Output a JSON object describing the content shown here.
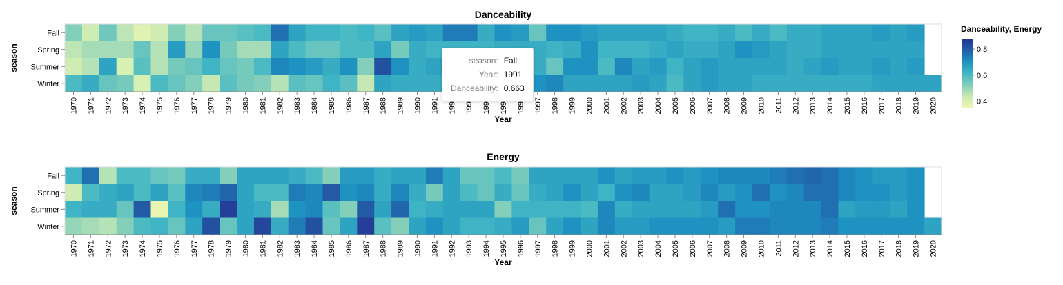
{
  "chart_data": [
    {
      "type": "heatmap",
      "title": "Danceability",
      "xlabel": "Year",
      "ylabel": "season",
      "x": [
        "1970",
        "1971",
        "1972",
        "1973",
        "1974",
        "1975",
        "1976",
        "1977",
        "1978",
        "1979",
        "1980",
        "1981",
        "1982",
        "1983",
        "1984",
        "1985",
        "1986",
        "1987",
        "1988",
        "1989",
        "1990",
        "1991",
        "1992",
        "1993",
        "1994",
        "1995",
        "1996",
        "1997",
        "1998",
        "1999",
        "2000",
        "2001",
        "2002",
        "2003",
        "2004",
        "2005",
        "2006",
        "2007",
        "2008",
        "2009",
        "2010",
        "2011",
        "2012",
        "2013",
        "2014",
        "2015",
        "2016",
        "2017",
        "2018",
        "2019",
        "2020"
      ],
      "y": [
        "Fall",
        "Spring",
        "Summer",
        "Winter"
      ],
      "values": [
        [
          0.52,
          0.42,
          0.55,
          0.45,
          0.38,
          0.42,
          0.52,
          0.46,
          0.56,
          0.56,
          0.58,
          0.6,
          0.76,
          0.66,
          0.62,
          0.62,
          0.6,
          0.62,
          0.58,
          0.66,
          0.68,
          0.663,
          0.74,
          0.74,
          0.64,
          0.7,
          0.68,
          0.56,
          0.7,
          0.7,
          0.68,
          0.66,
          0.66,
          0.66,
          0.66,
          0.64,
          0.62,
          0.62,
          0.64,
          0.6,
          0.64,
          0.6,
          0.64,
          0.64,
          0.66,
          0.66,
          0.66,
          0.68,
          0.66,
          0.68,
          null
        ],
        [
          0.45,
          0.48,
          0.48,
          0.48,
          0.56,
          0.46,
          0.68,
          0.5,
          0.7,
          0.54,
          0.48,
          0.48,
          0.66,
          0.6,
          0.56,
          0.56,
          0.6,
          0.6,
          0.66,
          0.54,
          0.64,
          0.62,
          0.62,
          0.62,
          0.62,
          0.64,
          0.64,
          0.64,
          0.62,
          0.64,
          0.7,
          0.62,
          0.62,
          0.62,
          0.64,
          0.66,
          0.64,
          0.64,
          0.66,
          0.7,
          0.68,
          0.66,
          0.64,
          0.64,
          0.66,
          0.66,
          0.66,
          0.66,
          0.66,
          0.66,
          null
        ],
        [
          0.42,
          0.46,
          0.66,
          0.4,
          0.58,
          0.46,
          0.54,
          0.56,
          0.62,
          0.56,
          0.54,
          0.6,
          0.72,
          0.7,
          0.68,
          0.64,
          0.7,
          0.52,
          0.82,
          0.7,
          0.64,
          0.66,
          0.68,
          0.68,
          0.7,
          0.7,
          0.66,
          0.64,
          0.56,
          0.7,
          0.7,
          0.6,
          0.72,
          0.66,
          0.68,
          0.62,
          0.66,
          0.68,
          0.66,
          0.66,
          0.66,
          0.66,
          0.64,
          0.66,
          0.68,
          0.66,
          0.66,
          0.68,
          0.66,
          0.68,
          null
        ],
        [
          0.6,
          0.64,
          0.56,
          0.54,
          0.4,
          0.6,
          0.56,
          0.52,
          0.44,
          0.58,
          0.54,
          0.52,
          0.46,
          0.58,
          0.56,
          0.62,
          0.58,
          0.44,
          0.66,
          0.64,
          0.64,
          0.64,
          0.64,
          0.64,
          0.64,
          0.66,
          0.7,
          0.7,
          0.72,
          0.66,
          0.66,
          0.66,
          0.66,
          0.68,
          0.66,
          0.6,
          0.66,
          0.68,
          0.66,
          0.66,
          0.64,
          0.64,
          0.64,
          0.64,
          0.64,
          0.64,
          0.64,
          0.66,
          0.66,
          0.66,
          0.66
        ]
      ]
    },
    {
      "type": "heatmap",
      "title": "Energy",
      "xlabel": "Year",
      "ylabel": "season",
      "x": [
        "1970",
        "1971",
        "1972",
        "1973",
        "1974",
        "1975",
        "1976",
        "1977",
        "1978",
        "1979",
        "1980",
        "1981",
        "1982",
        "1983",
        "1984",
        "1985",
        "1986",
        "1987",
        "1988",
        "1989",
        "1990",
        "1991",
        "1992",
        "1993",
        "1994",
        "1995",
        "1996",
        "1997",
        "1998",
        "1999",
        "2000",
        "2001",
        "2002",
        "2003",
        "2004",
        "2005",
        "2006",
        "2007",
        "2008",
        "2009",
        "2010",
        "2011",
        "2012",
        "2013",
        "2014",
        "2015",
        "2016",
        "2017",
        "2018",
        "2019",
        "2020"
      ],
      "y": [
        "Fall",
        "Spring",
        "Summer",
        "Winter"
      ],
      "values": [
        [
          0.62,
          0.76,
          0.46,
          0.6,
          0.6,
          0.56,
          0.54,
          0.64,
          0.64,
          0.52,
          0.66,
          0.66,
          0.66,
          0.64,
          0.6,
          0.52,
          0.68,
          0.68,
          0.64,
          0.66,
          0.66,
          0.74,
          0.66,
          0.56,
          0.56,
          0.6,
          0.54,
          0.66,
          0.66,
          0.66,
          0.66,
          0.7,
          0.66,
          0.68,
          0.68,
          0.7,
          0.68,
          0.7,
          0.72,
          0.72,
          0.72,
          0.74,
          0.76,
          0.78,
          0.76,
          0.72,
          0.7,
          0.68,
          0.68,
          0.7,
          null
        ],
        [
          0.42,
          0.6,
          0.64,
          0.66,
          0.6,
          0.66,
          0.58,
          0.72,
          0.74,
          0.78,
          0.66,
          0.6,
          0.6,
          0.74,
          0.72,
          0.8,
          0.7,
          0.72,
          0.64,
          0.72,
          0.64,
          0.54,
          0.66,
          0.6,
          0.56,
          0.64,
          0.56,
          0.64,
          0.66,
          0.7,
          0.66,
          0.62,
          0.7,
          0.72,
          0.66,
          0.66,
          0.68,
          0.72,
          0.68,
          0.7,
          0.76,
          0.7,
          0.72,
          0.76,
          0.76,
          0.72,
          0.7,
          0.7,
          0.68,
          0.7,
          null
        ],
        [
          0.62,
          0.64,
          0.64,
          0.56,
          0.8,
          0.36,
          0.62,
          0.7,
          0.64,
          0.86,
          0.66,
          0.64,
          0.48,
          0.7,
          0.72,
          0.58,
          0.52,
          0.8,
          0.66,
          0.78,
          0.62,
          0.64,
          0.66,
          0.66,
          0.66,
          0.52,
          0.62,
          0.62,
          0.62,
          0.62,
          0.6,
          0.72,
          0.64,
          0.66,
          0.66,
          0.66,
          0.66,
          0.68,
          0.76,
          0.7,
          0.7,
          0.72,
          0.72,
          0.72,
          0.76,
          0.66,
          0.68,
          0.68,
          0.66,
          0.7,
          null
        ],
        [
          0.5,
          0.48,
          0.46,
          0.52,
          0.6,
          0.62,
          0.56,
          0.66,
          0.82,
          0.56,
          0.66,
          0.84,
          0.64,
          0.74,
          0.82,
          0.56,
          0.66,
          0.86,
          0.58,
          0.52,
          0.66,
          0.7,
          0.66,
          0.62,
          0.62,
          0.64,
          0.68,
          0.56,
          0.66,
          0.7,
          0.66,
          0.72,
          0.68,
          0.68,
          0.7,
          0.7,
          0.7,
          0.7,
          0.68,
          0.74,
          0.74,
          0.72,
          0.72,
          0.72,
          0.74,
          0.7,
          0.7,
          0.7,
          0.7,
          0.7,
          0.66
        ]
      ]
    }
  ],
  "legend": {
    "title": "Danceability, Energy",
    "ticks": [
      "0.8",
      "0.6",
      "0.4"
    ],
    "tick_values": [
      0.8,
      0.6,
      0.4
    ],
    "domain": [
      0.35,
      0.88
    ],
    "colors": [
      "#edf8b1",
      "#c7e9b4",
      "#7fcdbb",
      "#41b6c4",
      "#1d91c0",
      "#225ea8",
      "#253494"
    ]
  },
  "tooltip": {
    "rows": [
      {
        "key": "season:",
        "value": "Fall"
      },
      {
        "key": "Year:",
        "value": "1991"
      },
      {
        "key": "Danceability:",
        "value": "0.663"
      }
    ]
  }
}
